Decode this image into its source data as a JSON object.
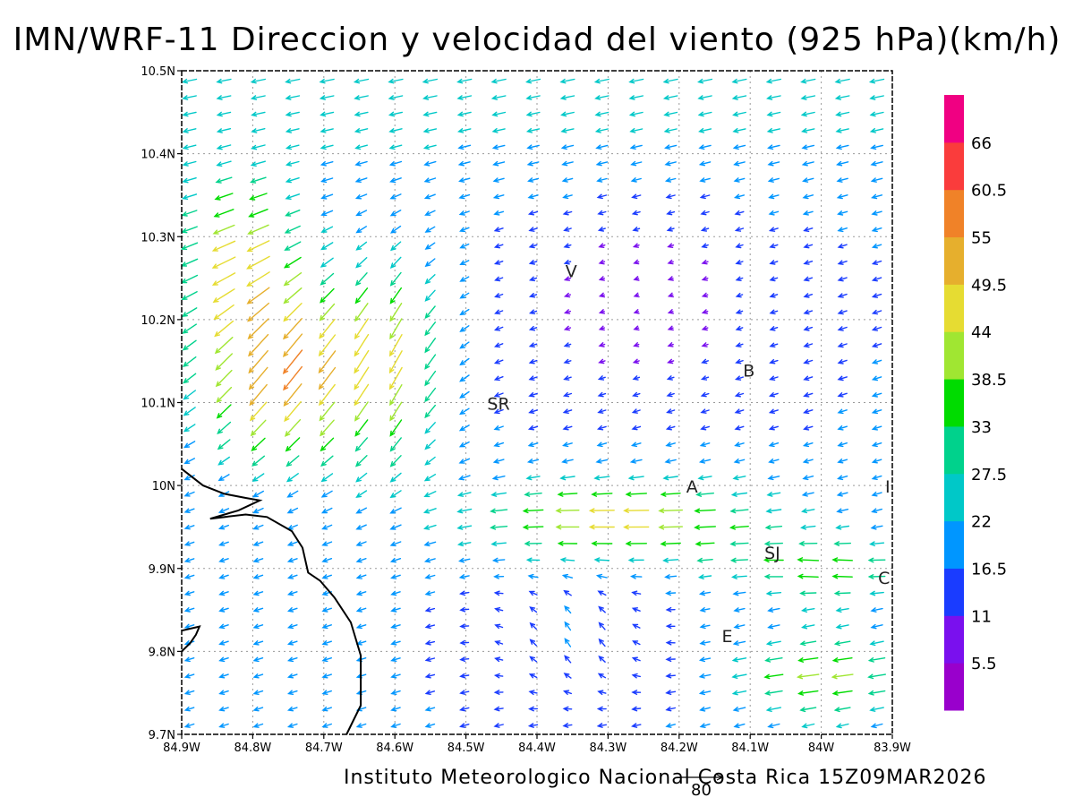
{
  "title": "IMN/WRF-11 Direccion y velocidad del viento (925 hPa)(km/h)",
  "footer": "Instituto Meteorologico Nacional Costa Rica 15Z09MAR2026",
  "reference_vector": {
    "label": "80",
    "value_kmh": 80
  },
  "chart_data": {
    "type": "vector-field",
    "title": "IMN/WRF-11 Direccion y velocidad del viento (925 hPa)(km/h)",
    "lon_range": [
      -84.9,
      -83.9
    ],
    "lat_range": [
      9.7,
      10.5
    ],
    "x_ticks": [
      "84.9W",
      "84.8W",
      "84.7W",
      "84.6W",
      "84.5W",
      "84.4W",
      "84.3W",
      "84.2W",
      "84.1W",
      "84W",
      "83.9W"
    ],
    "y_ticks": [
      "9.7N",
      "9.8N",
      "9.9N",
      "10N",
      "10.1N",
      "10.2N",
      "10.3N",
      "10.4N",
      "10.5N"
    ],
    "grid": true,
    "colorbar": {
      "position": "right",
      "labels": [
        "5.5",
        "11",
        "16.5",
        "22",
        "27.5",
        "33",
        "38.5",
        "44",
        "49.5",
        "55",
        "60.5",
        "66"
      ],
      "colors": [
        "#9900cc",
        "#7a10ee",
        "#1a3cff",
        "#0096ff",
        "#00c8c8",
        "#00d28c",
        "#00dc00",
        "#a0e632",
        "#e6dc32",
        "#e6af2d",
        "#f08228",
        "#fa3c3c",
        "#f00082"
      ]
    },
    "places": [
      {
        "label": "V",
        "lon": -84.36,
        "lat": 10.26
      },
      {
        "label": "SR",
        "lon": -84.47,
        "lat": 10.1
      },
      {
        "label": "B",
        "lon": -84.11,
        "lat": 10.14
      },
      {
        "label": "A",
        "lon": -84.19,
        "lat": 10.0
      },
      {
        "label": "I",
        "lon": -83.91,
        "lat": 10.0
      },
      {
        "label": "SJ",
        "lon": -84.08,
        "lat": 9.92
      },
      {
        "label": "C",
        "lon": -83.92,
        "lat": 9.89
      },
      {
        "label": "E",
        "lon": -84.14,
        "lat": 9.82
      }
    ],
    "coastline": [
      [
        -84.9,
        10.02
      ],
      [
        -84.87,
        10.0
      ],
      [
        -84.84,
        9.99
      ],
      [
        -84.81,
        9.985
      ],
      [
        -84.79,
        9.982
      ],
      [
        -84.82,
        9.97
      ],
      [
        -84.86,
        9.96
      ],
      [
        -84.81,
        9.965
      ],
      [
        -84.78,
        9.962
      ],
      [
        -84.745,
        9.945
      ],
      [
        -84.73,
        9.925
      ],
      [
        -84.722,
        9.895
      ],
      [
        -84.705,
        9.885
      ],
      [
        -84.685,
        9.865
      ],
      [
        -84.662,
        9.835
      ],
      [
        -84.648,
        9.795
      ],
      [
        -84.648,
        9.735
      ],
      [
        -84.668,
        9.7
      ]
    ],
    "coastline_2": [
      [
        -84.9,
        9.825
      ],
      [
        -84.875,
        9.83
      ],
      [
        -84.88,
        9.82
      ],
      [
        -84.888,
        9.81
      ],
      [
        -84.9,
        9.8
      ]
    ]
  }
}
